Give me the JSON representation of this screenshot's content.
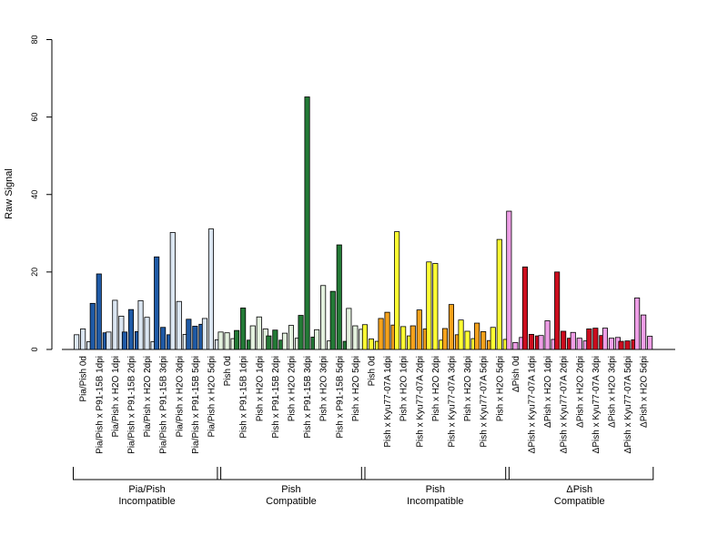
{
  "chart_data": {
    "type": "bar",
    "ylabel": "Raw Signal",
    "ylim": [
      0,
      80
    ],
    "yticks": [
      0,
      20,
      40,
      60,
      80
    ],
    "grid": false,
    "legend": "none",
    "bar_order_within_group": [
      "shade-1",
      "shade-2",
      "shade-3"
    ],
    "categories": [
      "Pia/Pish 0d",
      "Pia/Pish x P91-15B 1dpi",
      "Pia/Pish x H2O 1dpi",
      "Pia/Pish x P91-15B 2dpi",
      "Pia/Pish x H2O 2dpi",
      "Pia/Pish x P91-15B 3dpi",
      "Pia/Pish x H2O 3dpi",
      "Pia/Pish x P91-15B 5dpi",
      "Pia/Pish x H2O 5dpi",
      "Pish 0d",
      "Pish x P91-15B 1dpi",
      "Pish x H2O 1dpi",
      "Pish x P91-15B 2dpi",
      "Pish x H2O 2dpi",
      "Pish x P91-15B 3dpi",
      "Pish x H2O 3dpi",
      "Pish x P91-15B 5dpi",
      "Pish x H2O 5dpi",
      "Pish 0d",
      "Pish x Kyu77-07A 1dpi",
      "Pish x H2O 1dpi",
      "Pish x Kyu77-07A 2dpi",
      "Pish x H2O 2dpi",
      "Pish x Kyu77-07A 3dpi",
      "Pish x H2O 3dpi",
      "Pish x Kyu77-07A 5dpi",
      "Pish x H2O 5dpi",
      "ΔPish 0d",
      "ΔPish x Kyu77-07A 1dpi",
      "ΔPish x H2O 1dpi",
      "ΔPish x Kyu77-07A 2dpi",
      "ΔPish x H2O 2dpi",
      "ΔPish x Kyu77-07A 3dpi",
      "ΔPish x H2O 3dpi",
      "ΔPish x Kyu77-07A 5dpi",
      "ΔPish x H2O 5dpi"
    ],
    "values": [
      [
        3.8,
        5.3,
        2.0
      ],
      [
        11.9,
        19.5,
        4.3
      ],
      [
        4.5,
        12.7,
        8.6
      ],
      [
        4.5,
        10.3,
        4.6
      ],
      [
        12.6,
        8.3,
        2.0
      ],
      [
        23.9,
        5.7,
        3.8
      ],
      [
        30.2,
        12.4,
        3.9
      ],
      [
        7.8,
        6.0,
        6.5
      ],
      [
        8.0,
        31.1,
        2.5
      ],
      [
        4.5,
        4.3,
        2.8
      ],
      [
        4.9,
        10.7,
        2.4
      ],
      [
        6.1,
        8.4,
        5.3
      ],
      [
        3.5,
        5.0,
        2.4
      ],
      [
        4.2,
        6.2,
        2.9
      ],
      [
        8.8,
        65.2,
        3.2
      ],
      [
        5.1,
        16.5,
        2.2
      ],
      [
        15.0,
        27.0,
        2.1
      ],
      [
        10.6,
        6.1,
        5.2
      ],
      [
        6.4,
        2.7,
        2.1
      ],
      [
        8.0,
        9.6,
        6.3
      ],
      [
        30.4,
        5.9,
        3.5
      ],
      [
        6.1,
        10.2,
        5.3
      ],
      [
        22.6,
        22.2,
        2.4
      ],
      [
        5.4,
        11.6,
        3.8
      ],
      [
        7.6,
        4.7,
        2.8
      ],
      [
        6.8,
        4.6,
        2.3
      ],
      [
        5.7,
        28.4,
        2.6
      ],
      [
        35.7,
        1.8,
        3.1
      ],
      [
        21.3,
        3.9,
        3.5
      ],
      [
        3.6,
        7.4,
        2.6
      ],
      [
        20.0,
        4.7,
        2.9
      ],
      [
        4.4,
        2.9,
        2.2
      ],
      [
        5.3,
        5.5,
        3.6
      ],
      [
        5.5,
        2.9,
        3.1
      ],
      [
        2.1,
        2.2,
        2.5
      ],
      [
        13.3,
        8.9,
        3.4
      ]
    ],
    "category_color_index": [
      0,
      1,
      0,
      1,
      0,
      1,
      0,
      1,
      0,
      2,
      3,
      2,
      3,
      2,
      3,
      2,
      3,
      2,
      4,
      5,
      4,
      5,
      4,
      5,
      4,
      5,
      4,
      6,
      7,
      6,
      7,
      6,
      7,
      6,
      7,
      6
    ],
    "fill_colors": [
      "#dbe6f2",
      "#1f5aa6",
      "#e3f1de",
      "#237a36",
      "#ffff33",
      "#f5a21c",
      "#ee9ee6",
      "#cc0c1e"
    ],
    "groups": [
      {
        "line1": "Pia/Pish",
        "line2": "Incompatible",
        "start": 0,
        "end": 8
      },
      {
        "line1": "Pish",
        "line2": "Compatible",
        "start": 9,
        "end": 17
      },
      {
        "line1": "Pish",
        "line2": "Incompatible",
        "start": 18,
        "end": 26
      },
      {
        "line1": "ΔPish",
        "line2": "Compatible",
        "start": 27,
        "end": 35
      }
    ]
  }
}
